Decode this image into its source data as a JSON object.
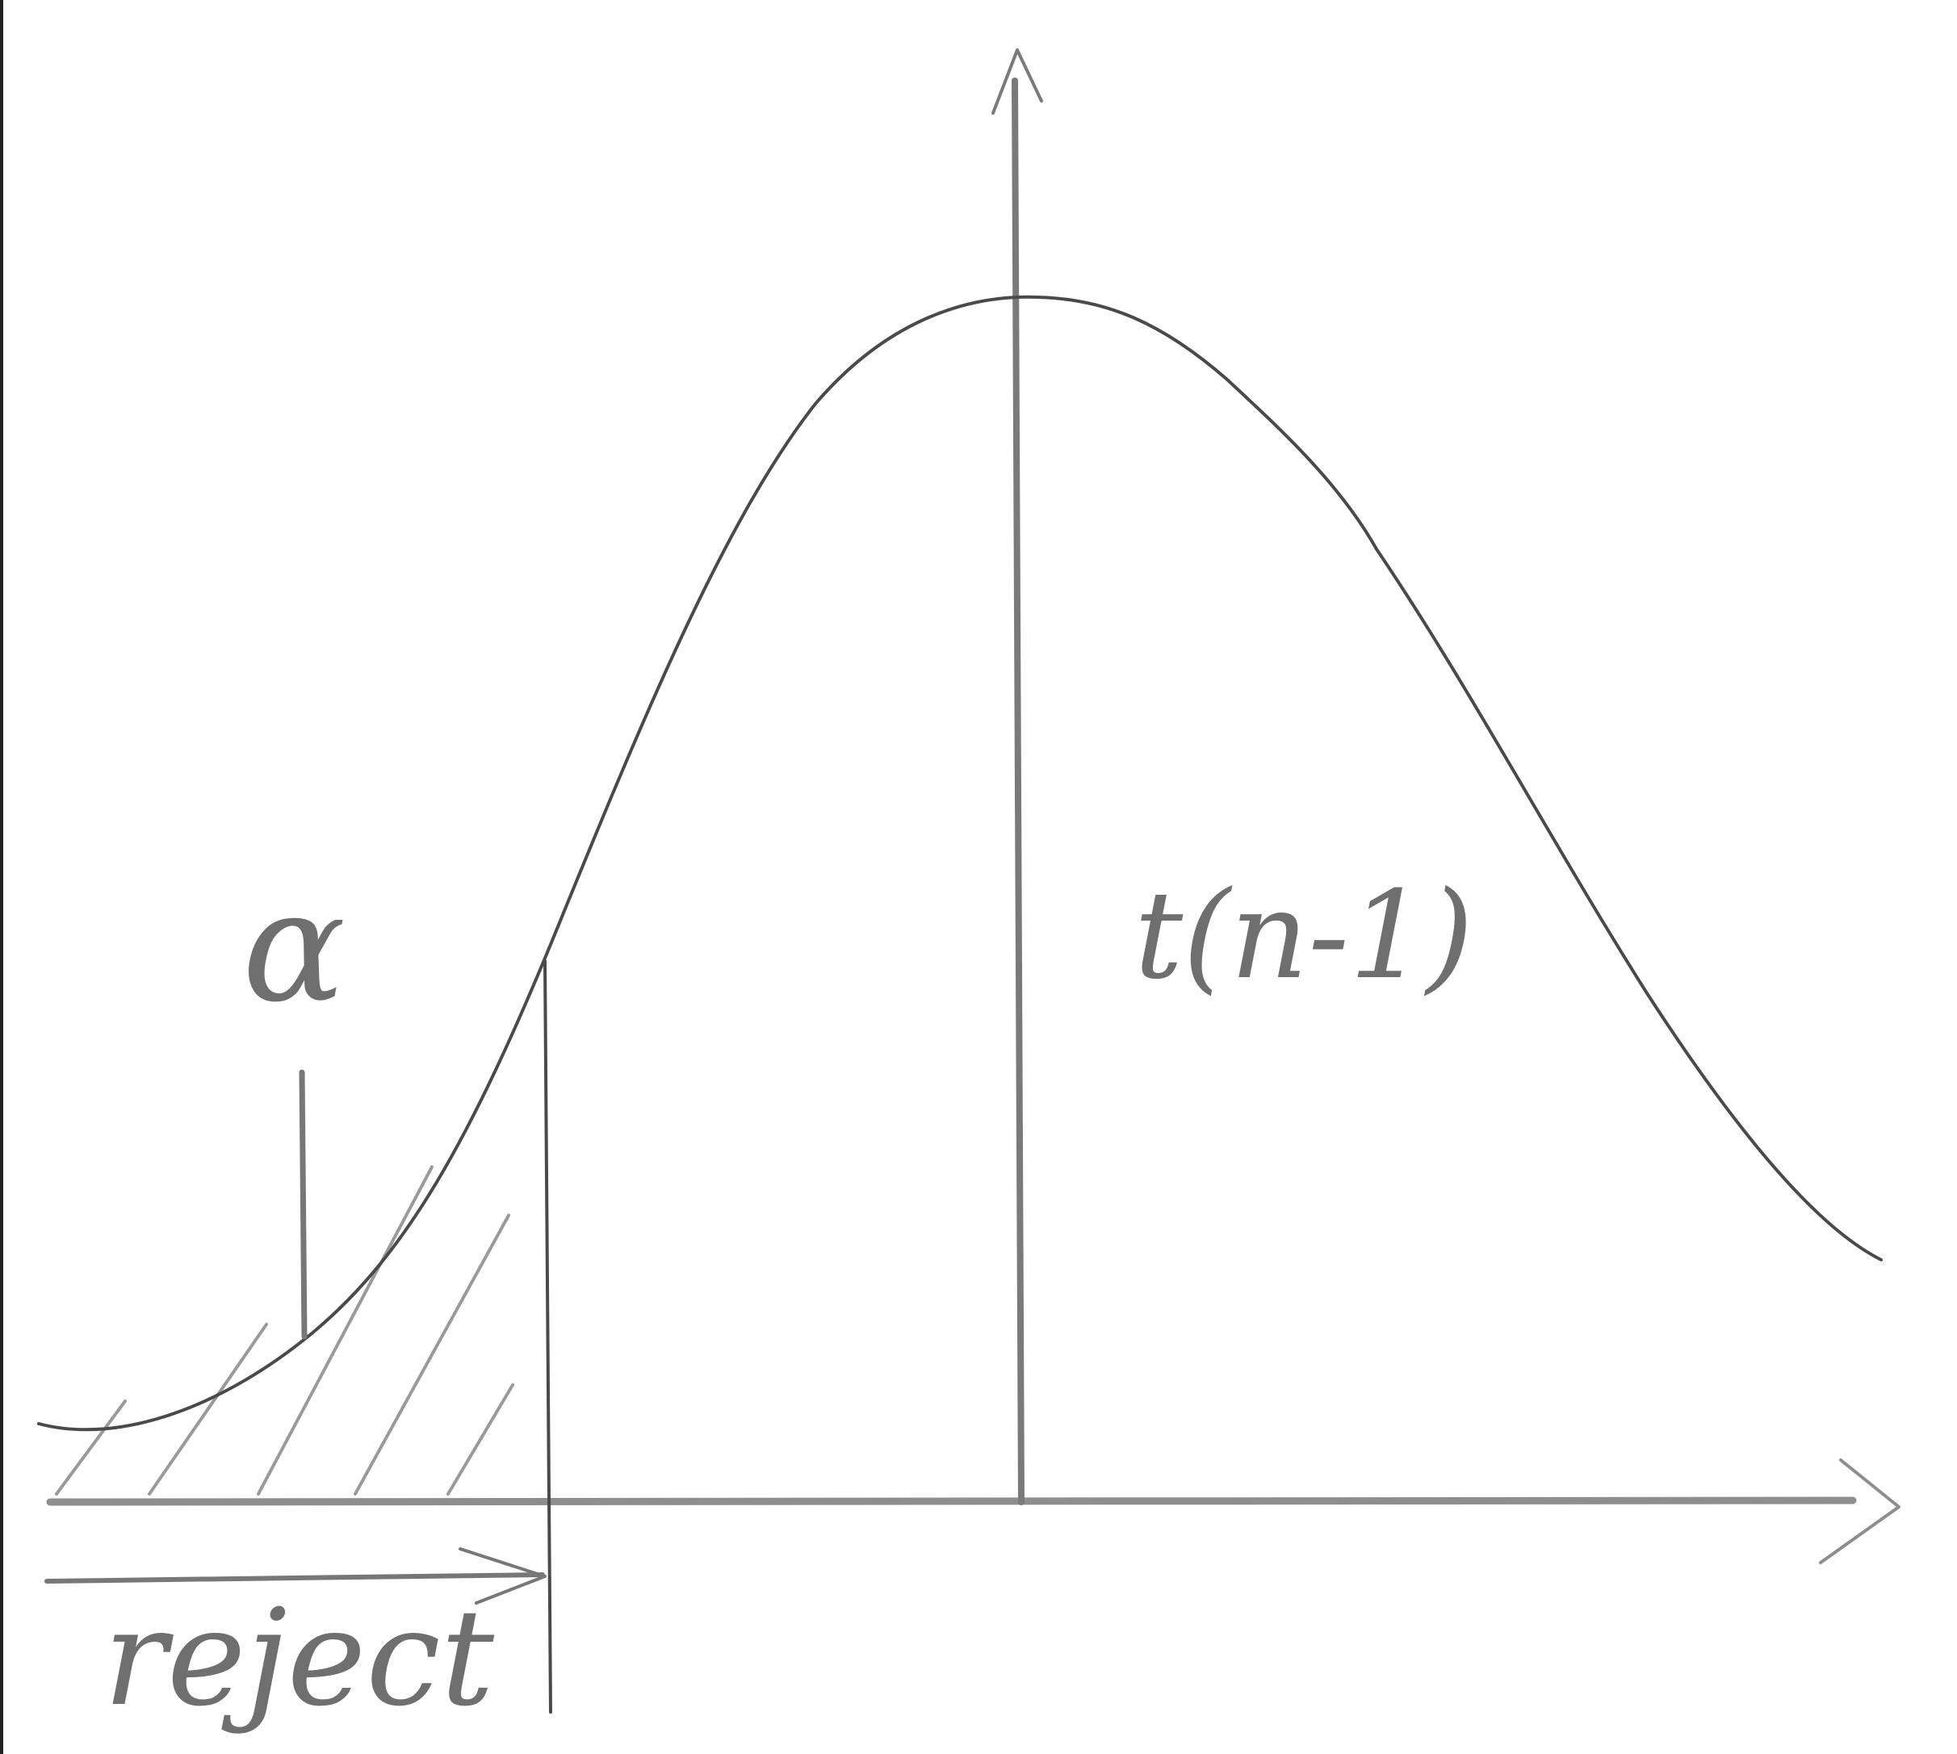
{
  "diagram": {
    "distribution_label": "t(n-1)",
    "tail_area_symbol": "α",
    "region_label": "reject",
    "colors": {
      "paper": "#ffffff",
      "curve": "#4a4a4a",
      "axis": "#8e8e8e",
      "hatch": "#9a9a9a",
      "text": "#6f6f6f",
      "edge": "#222222"
    }
  }
}
